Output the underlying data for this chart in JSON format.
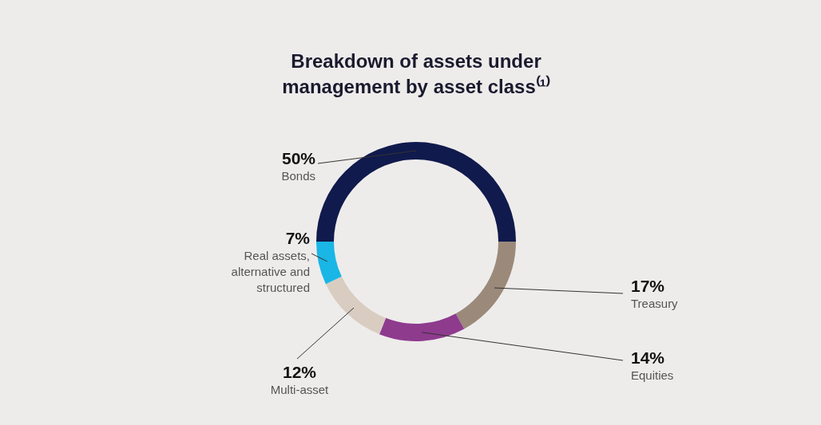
{
  "chart_data": {
    "type": "donut",
    "title": "Breakdown of assets under management by asset class⁽¹⁾",
    "categories": [
      "Bonds",
      "Treasury",
      "Equities",
      "Multi-asset",
      "Real assets, alternative and structured"
    ],
    "values": [
      50,
      17,
      14,
      12,
      7
    ],
    "value_labels": [
      "50%",
      "17%",
      "14%",
      "12%",
      "7%"
    ],
    "colors": [
      "#101a4c",
      "#9b8a7a",
      "#8e3b8e",
      "#d9cdc2",
      "#19b6e6"
    ]
  }
}
